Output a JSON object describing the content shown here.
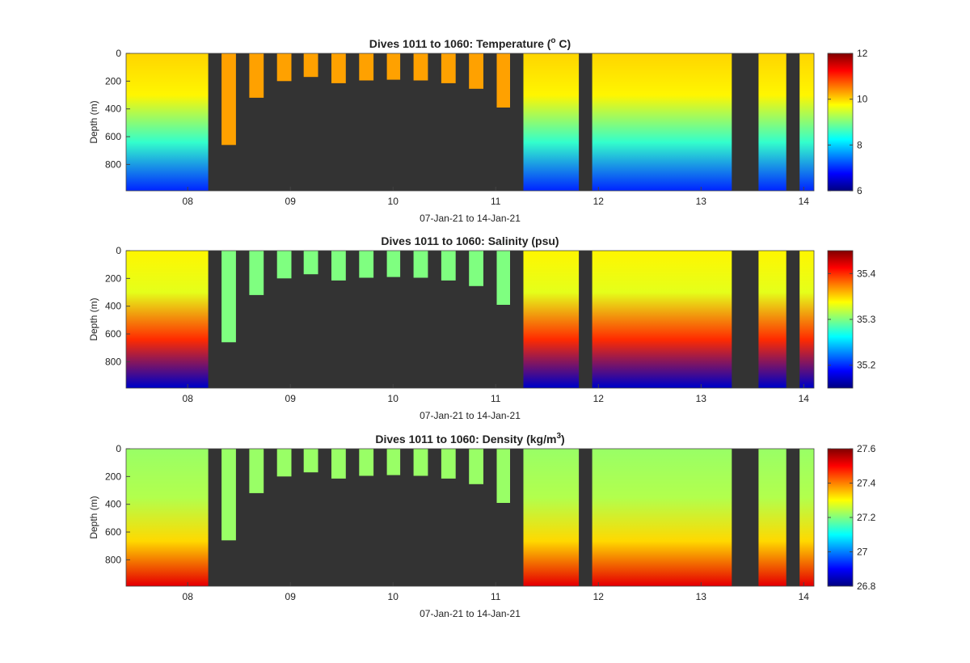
{
  "figure": {
    "background": "#ffffff",
    "missing_color": "#333333"
  },
  "colormap": "jet",
  "chart_data": [
    {
      "type": "heatmap",
      "title_main": "Dives 1011 to 1060: Temperature (",
      "title_sup": "o",
      "title_tail": " C)",
      "xlabel": "07-Jan-21 to 14-Jan-21",
      "ylabel": "Depth (m)",
      "x_tick_labels": [
        "08",
        "09",
        "10",
        "11",
        "12",
        "13",
        "14"
      ],
      "x_ticks": [
        8,
        9,
        10,
        11,
        12,
        13,
        14
      ],
      "xlim": [
        7.4,
        14.1
      ],
      "y_tick_labels": [
        "0",
        "200",
        "400",
        "600",
        "800"
      ],
      "y_ticks": [
        0,
        200,
        400,
        600,
        800
      ],
      "ylim": [
        0,
        990
      ],
      "y_reversed": true,
      "clim": [
        6,
        12
      ],
      "colorbar_tick_labels": [
        "6",
        "8",
        "10",
        "12"
      ],
      "colorbar_ticks": [
        6,
        8,
        10,
        12
      ],
      "profile": {
        "surface": 10.0,
        "mid_depth": 300,
        "mid": 9.8,
        "deep": 7.0,
        "deep_depth": 980,
        "shallow_value": 10.3
      }
    },
    {
      "type": "heatmap",
      "title_main": "Dives 1011 to 1060: Salinity (psu)",
      "title_sup": "",
      "title_tail": "",
      "xlabel": "07-Jan-21 to 14-Jan-21",
      "ylabel": "Depth (m)",
      "x_tick_labels": [
        "08",
        "09",
        "10",
        "11",
        "12",
        "13",
        "14"
      ],
      "x_ticks": [
        8,
        9,
        10,
        11,
        12,
        13,
        14
      ],
      "xlim": [
        7.4,
        14.1
      ],
      "y_tick_labels": [
        "0",
        "200",
        "400",
        "600",
        "800"
      ],
      "y_ticks": [
        0,
        200,
        400,
        600,
        800
      ],
      "ylim": [
        0,
        990
      ],
      "y_reversed": true,
      "clim": [
        35.15,
        35.45
      ],
      "colorbar_tick_labels": [
        "35.2",
        "35.3",
        "35.4"
      ],
      "colorbar_ticks": [
        35.2,
        35.3,
        35.4
      ],
      "profile": {
        "surface": 35.34,
        "mid_depth": 300,
        "mid": 35.33,
        "deep": 35.17,
        "deep_depth": 980,
        "shallow_value": 35.3
      }
    },
    {
      "type": "heatmap",
      "title_main": "Dives 1011 to 1060: Density (kg/m",
      "title_sup": "3",
      "title_tail": ")",
      "xlabel": "07-Jan-21 to 14-Jan-21",
      "ylabel": "Depth (m)",
      "x_tick_labels": [
        "08",
        "09",
        "10",
        "11",
        "12",
        "13",
        "14"
      ],
      "x_ticks": [
        8,
        9,
        10,
        11,
        12,
        13,
        14
      ],
      "xlim": [
        7.4,
        14.1
      ],
      "y_tick_labels": [
        "0",
        "200",
        "400",
        "600",
        "800"
      ],
      "y_ticks": [
        0,
        200,
        400,
        600,
        800
      ],
      "ylim": [
        0,
        990
      ],
      "y_reversed": true,
      "clim": [
        26.8,
        27.6
      ],
      "colorbar_tick_labels": [
        "26.8",
        "27",
        "27.2",
        "27.4",
        "27.6"
      ],
      "colorbar_ticks": [
        26.8,
        27.0,
        27.2,
        27.4,
        27.6
      ],
      "profile": {
        "surface": 27.22,
        "mid_depth": 350,
        "mid": 27.24,
        "deep": 27.52,
        "deep_depth": 980,
        "shallow_value": 27.22
      }
    }
  ],
  "dives": [
    {
      "start": 7.4,
      "end": 8.2,
      "max_depth": 990
    },
    {
      "start": 8.33,
      "end": 8.47,
      "max_depth": 660
    },
    {
      "start": 8.6,
      "end": 8.74,
      "max_depth": 320
    },
    {
      "start": 8.87,
      "end": 9.01,
      "max_depth": 200
    },
    {
      "start": 9.13,
      "end": 9.27,
      "max_depth": 170
    },
    {
      "start": 9.4,
      "end": 9.54,
      "max_depth": 215
    },
    {
      "start": 9.67,
      "end": 9.81,
      "max_depth": 195
    },
    {
      "start": 9.94,
      "end": 10.07,
      "max_depth": 190
    },
    {
      "start": 10.2,
      "end": 10.34,
      "max_depth": 195
    },
    {
      "start": 10.47,
      "end": 10.61,
      "max_depth": 215
    },
    {
      "start": 10.74,
      "end": 10.88,
      "max_depth": 255
    },
    {
      "start": 11.01,
      "end": 11.14,
      "max_depth": 390
    },
    {
      "start": 11.27,
      "end": 11.81,
      "max_depth": 990
    },
    {
      "start": 11.94,
      "end": 13.3,
      "max_depth": 990
    },
    {
      "start": 13.56,
      "end": 13.83,
      "max_depth": 990
    },
    {
      "start": 13.96,
      "end": 14.1,
      "max_depth": 990
    }
  ]
}
